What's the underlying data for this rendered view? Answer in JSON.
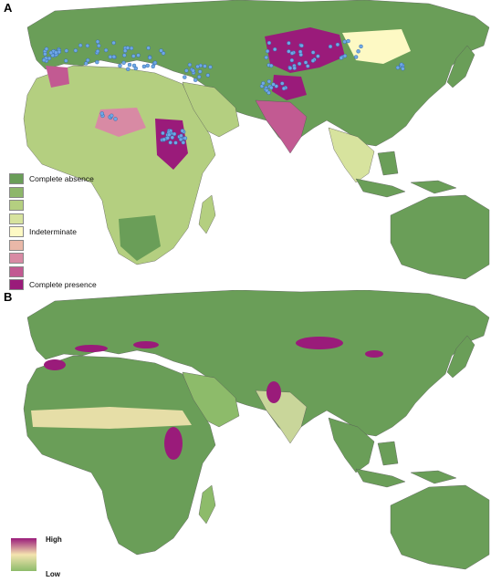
{
  "panel_a": {
    "letter": "A",
    "legend": [
      {
        "label": "Complete absence",
        "color": "#6a9e58"
      },
      {
        "label": "",
        "color": "#8db66a"
      },
      {
        "label": "",
        "color": "#b4cf80"
      },
      {
        "label": "",
        "color": "#d7e39e"
      },
      {
        "label": "Indeterminate",
        "color": "#fdf9c4"
      },
      {
        "label": "",
        "color": "#e9b8a8"
      },
      {
        "label": "",
        "color": "#d88aa4"
      },
      {
        "label": "",
        "color": "#c25a92"
      },
      {
        "label": "Complete presence",
        "color": "#9a1b7a"
      }
    ]
  },
  "panel_b": {
    "letter": "B",
    "legend_high": "High",
    "legend_low": "Low",
    "colors": {
      "high": "#9a1b7a",
      "mid": "#f4e4b0",
      "low": "#8dbb6a"
    }
  },
  "colors": {
    "ocean": "#ffffff",
    "land": "#6a9e58",
    "point": "#6fa8e6"
  }
}
